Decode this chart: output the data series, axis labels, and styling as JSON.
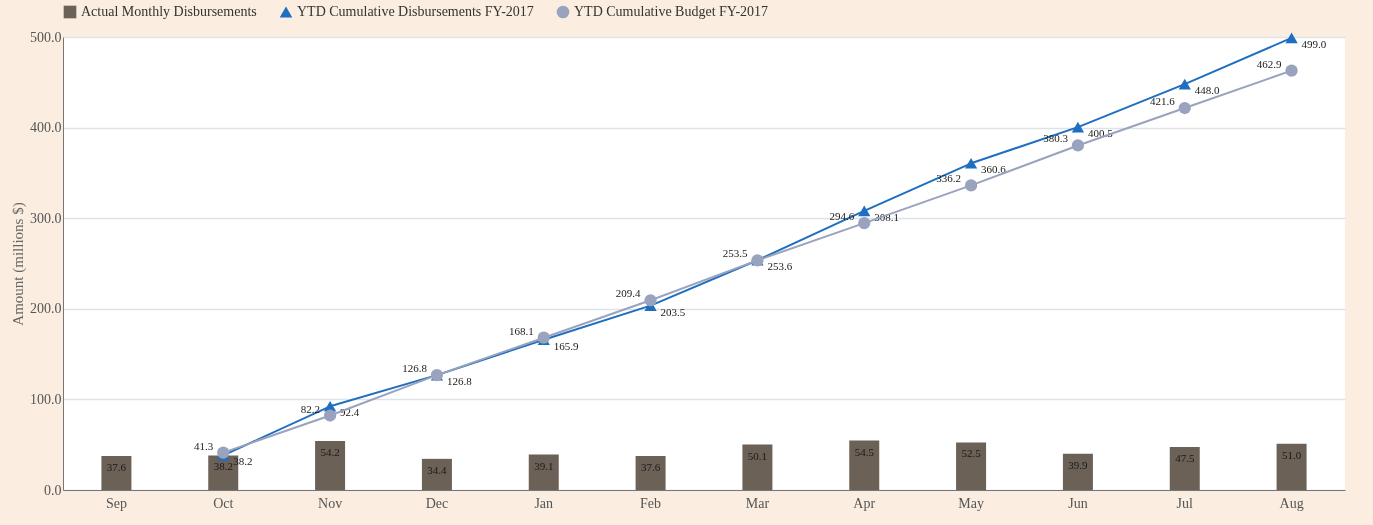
{
  "chart_data": {
    "type": "bar",
    "ylabel": "Amount (millions $)",
    "categories": [
      "Sep",
      "Oct",
      "Nov",
      "Dec",
      "Jan",
      "Feb",
      "Mar",
      "Apr",
      "May",
      "Jun",
      "Jul",
      "Aug"
    ],
    "series": [
      {
        "name": "Actual Monthly Disbursements",
        "color": "#6b6157",
        "values": [
          37.6,
          38.2,
          54.2,
          34.4,
          39.1,
          37.6,
          50.1,
          54.5,
          52.5,
          39.9,
          47.5,
          51.0
        ],
        "value_labels": [
          "37.6",
          "38.2",
          "54.2",
          "34.4",
          "39.1",
          "37.6",
          "50.1",
          "54.5",
          "52.5",
          "39.9",
          "47.5",
          "51.0"
        ]
      },
      {
        "name": "YTD Cumulative Disbursements FY-2017",
        "type": "line",
        "marker": "triangle",
        "color": "#1f6fc0",
        "values": [
          null,
          38.2,
          92.4,
          126.8,
          165.9,
          203.5,
          253.6,
          308.1,
          360.6,
          400.5,
          448.0,
          499.0
        ],
        "value_labels": [
          null,
          "38.2",
          "92.4",
          "126.8",
          "165.9",
          "203.5",
          "253.6",
          "308.1",
          "360.6",
          "400.5",
          "448.0",
          "499.0"
        ]
      },
      {
        "name": "YTD Cumulative Budget FY-2017",
        "type": "line",
        "marker": "circle",
        "color": "#9aa3bd",
        "values": [
          null,
          41.3,
          82.2,
          126.8,
          168.1,
          209.4,
          253.5,
          294.6,
          336.2,
          380.3,
          421.6,
          462.9
        ],
        "value_labels": [
          null,
          "41.3",
          "82.2",
          "126.8",
          "168.1",
          "209.4",
          "253.5",
          "294.6",
          "336.2",
          "380.3",
          "421.6",
          "462.9"
        ]
      }
    ],
    "ylim": [
      0,
      500
    ],
    "yticks": [
      {
        "value": 0,
        "label": "0.0"
      },
      {
        "value": 100,
        "label": "100.0"
      },
      {
        "value": 200,
        "label": "200.0"
      },
      {
        "value": 300,
        "label": "300.0"
      },
      {
        "value": 400,
        "label": "400.0"
      },
      {
        "value": 500,
        "label": "500.0"
      }
    ],
    "grid": "y",
    "legend": "top"
  }
}
